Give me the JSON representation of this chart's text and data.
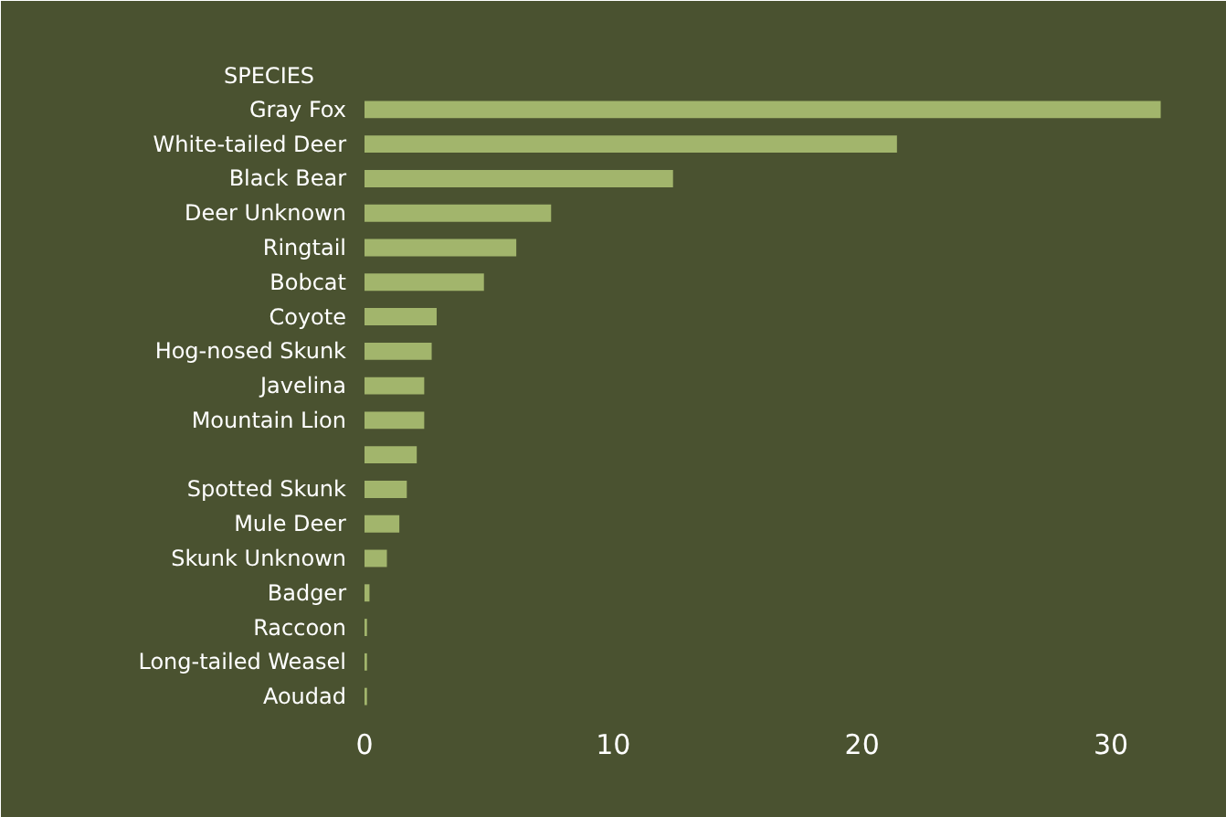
{
  "chart_data": {
    "type": "bar",
    "orientation": "horizontal",
    "ylabel": "SPECIES",
    "categories": [
      "Gray Fox",
      "White-tailed Deer",
      "Black Bear",
      "Deer Unknown",
      "Ringtail",
      "Bobcat",
      "Coyote",
      "Hog-nosed Skunk",
      "Javelina",
      "Mountain Lion",
      null,
      "Spotted Skunk",
      "Mule Deer",
      "Skunk Unknown",
      "Badger",
      "Raccoon",
      "Long-tailed Weasel",
      "Aoudad"
    ],
    "values": [
      32,
      21.4,
      12.4,
      7.5,
      6.1,
      4.8,
      2.9,
      2.7,
      2.4,
      2.4,
      2.1,
      1.7,
      1.4,
      0.9,
      0.2,
      0.1,
      0.1,
      0.1
    ],
    "color": "#a2b56c",
    "xlim": [
      0,
      34
    ],
    "xticks": [
      0,
      10,
      20,
      30
    ],
    "grid": false
  }
}
